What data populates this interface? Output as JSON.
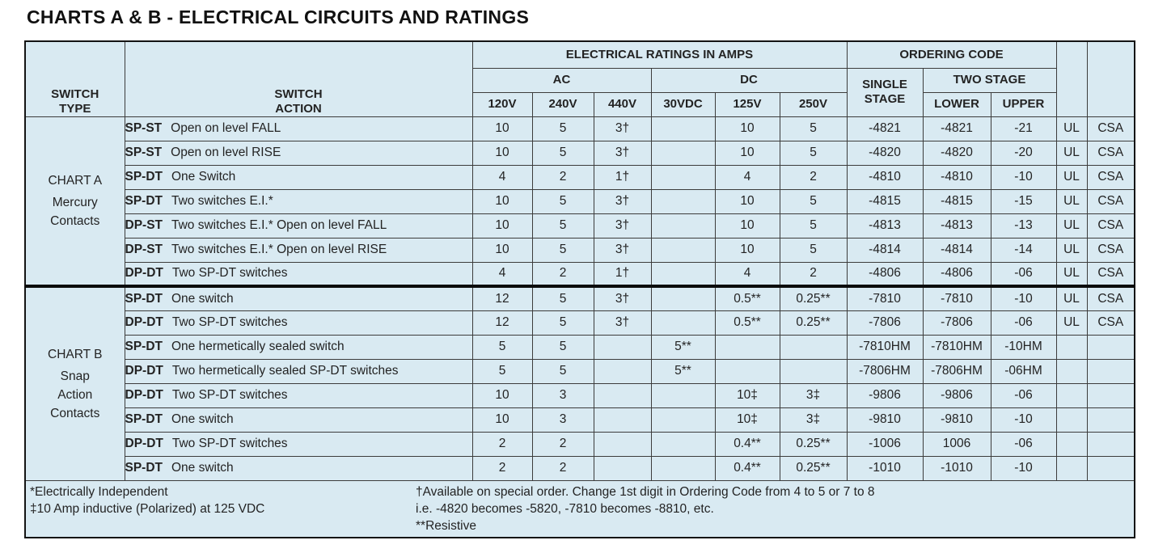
{
  "title": "CHARTS A & B - ELECTRICAL CIRCUITS AND RATINGS",
  "colors": {
    "cell_bg": "#d9eaf2",
    "border": "#3c3c3c",
    "outer_border": "#141414",
    "thick_divider": "#0c0c0c",
    "text": "#232323"
  },
  "table": {
    "header": {
      "switch_type": "SWITCH\nTYPE",
      "switch_action": "SWITCH\nACTION",
      "ratings_group": "ELECTRICAL RATINGS IN AMPS",
      "ac_group": "AC",
      "dc_group": "DC",
      "ac_cols": [
        "120V",
        "240V",
        "440V"
      ],
      "dc_cols": [
        "30VDC",
        "125V",
        "250V"
      ],
      "ordering_group": "ORDERING CODE",
      "single_stage": "SINGLE\nSTAGE",
      "two_stage": "TWO STAGE",
      "two_stage_cols": [
        "LOWER",
        "UPPER"
      ]
    },
    "sections": [
      {
        "name": "CHART A",
        "subtitle": [
          "Mercury",
          "Contacts"
        ],
        "rows": [
          {
            "type": "SP-ST",
            "action": "Open on level FALL",
            "values": [
              "10",
              "5",
              "3†",
              "",
              "10",
              "5",
              "-4821",
              "-4821",
              "-21",
              "UL",
              "CSA"
            ]
          },
          {
            "type": "SP-ST",
            "action": "Open on level RISE",
            "values": [
              "10",
              "5",
              "3†",
              "",
              "10",
              "5",
              "-4820",
              "-4820",
              "-20",
              "UL",
              "CSA"
            ]
          },
          {
            "type": "SP-DT",
            "action": "One Switch",
            "values": [
              "4",
              "2",
              "1†",
              "",
              "4",
              "2",
              "-4810",
              "-4810",
              "-10",
              "UL",
              "CSA"
            ]
          },
          {
            "type": "SP-DT",
            "action": "Two switches E.I.*",
            "values": [
              "10",
              "5",
              "3†",
              "",
              "10",
              "5",
              "-4815",
              "-4815",
              "-15",
              "UL",
              "CSA"
            ]
          },
          {
            "type": "DP-ST",
            "action": "Two switches E.I.* Open on level FALL",
            "values": [
              "10",
              "5",
              "3†",
              "",
              "10",
              "5",
              "-4813",
              "-4813",
              "-13",
              "UL",
              "CSA"
            ]
          },
          {
            "type": "DP-ST",
            "action": "Two switches E.I.* Open on level RISE",
            "values": [
              "10",
              "5",
              "3†",
              "",
              "10",
              "5",
              "-4814",
              "-4814",
              "-14",
              "UL",
              "CSA"
            ]
          },
          {
            "type": "DP-DT",
            "action": "Two SP-DT switches",
            "values": [
              "4",
              "2",
              "1†",
              "",
              "4",
              "2",
              "-4806",
              "-4806",
              "-06",
              "UL",
              "CSA"
            ]
          }
        ]
      },
      {
        "name": "CHART B",
        "subtitle": [
          "Snap",
          "Action",
          "Contacts"
        ],
        "rows": [
          {
            "type": "SP-DT",
            "action": "One switch",
            "values": [
              "12",
              "5",
              "3†",
              "",
              "0.5**",
              "0.25**",
              "-7810",
              "-7810",
              "-10",
              "UL",
              "CSA"
            ]
          },
          {
            "type": "DP-DT",
            "action": "Two SP-DT switches",
            "values": [
              "12",
              "5",
              "3†",
              "",
              "0.5**",
              "0.25**",
              "-7806",
              "-7806",
              "-06",
              "UL",
              "CSA"
            ]
          },
          {
            "type": "SP-DT",
            "action": "One hermetically sealed switch",
            "values": [
              "5",
              "5",
              "",
              "5**",
              "",
              "",
              "-7810HM",
              "-7810HM",
              "-10HM",
              "",
              ""
            ]
          },
          {
            "type": "DP-DT",
            "action": "Two hermetically sealed SP-DT switches",
            "values": [
              "5",
              "5",
              "",
              "5**",
              "",
              "",
              "-7806HM",
              "-7806HM",
              "-06HM",
              "",
              ""
            ]
          },
          {
            "type": "DP-DT",
            "action": "Two SP-DT switches",
            "values": [
              "10",
              "3",
              "",
              "",
              "10‡",
              "3‡",
              "-9806",
              "-9806",
              "-06",
              "",
              ""
            ]
          },
          {
            "type": "SP-DT",
            "action": "One switch",
            "values": [
              "10",
              "3",
              "",
              "",
              "10‡",
              "3‡",
              "-9810",
              "-9810",
              "-10",
              "",
              ""
            ]
          },
          {
            "type": "DP-DT",
            "action": "Two SP-DT switches",
            "values": [
              "2",
              "2",
              "",
              "",
              "0.4**",
              "0.25**",
              "-1006",
              "1006",
              "-06",
              "",
              ""
            ]
          },
          {
            "type": "SP-DT",
            "action": "One switch",
            "values": [
              "2",
              "2",
              "",
              "",
              "0.4**",
              "0.25**",
              "-1010",
              "-1010",
              "-10",
              "",
              ""
            ]
          }
        ]
      }
    ],
    "footnotes": {
      "left": [
        "*Electrically Independent",
        "‡10 Amp inductive (Polarized) at 125 VDC"
      ],
      "right": [
        "†Available on special order. Change 1st digit in Ordering Code from 4 to 5 or 7 to 8",
        "i.e. -4820 becomes -5820, -7810 becomes -8810, etc.",
        "**Resistive"
      ]
    }
  }
}
